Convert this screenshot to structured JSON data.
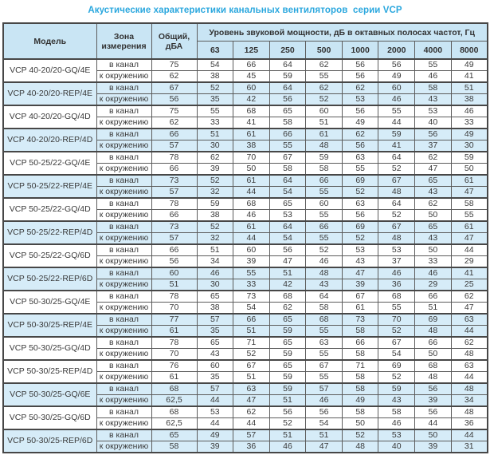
{
  "title": "Акустические характеристики канальных вентиляторов  серии VCP",
  "table": {
    "headers": {
      "model": "Модель",
      "zone": "Зона измерения",
      "total": "Общий, дБА",
      "group": "Уровень звуковой мощности, дБ в октавных полосах частот, Гц",
      "frequencies": [
        "63",
        "125",
        "250",
        "500",
        "1000",
        "2000",
        "4000",
        "8000"
      ]
    },
    "zone_labels": {
      "duct": "в канал",
      "ambient": "к окружению"
    },
    "rows": [
      {
        "model": "VCP 40-20/20-GQ/4E",
        "shaded": false,
        "duct": {
          "total": "75",
          "values": [
            54,
            66,
            64,
            62,
            56,
            56,
            55,
            49
          ]
        },
        "ambient": {
          "total": "62",
          "values": [
            38,
            45,
            59,
            55,
            56,
            49,
            46,
            41
          ]
        }
      },
      {
        "model": "VCP 40-20/20-REP/4E",
        "shaded": true,
        "duct": {
          "total": "67",
          "values": [
            52,
            60,
            64,
            62,
            62,
            60,
            58,
            51
          ]
        },
        "ambient": {
          "total": "56",
          "values": [
            35,
            42,
            56,
            52,
            53,
            46,
            43,
            38
          ]
        }
      },
      {
        "model": "VCP 40-20/20-GQ/4D",
        "shaded": false,
        "duct": {
          "total": "75",
          "values": [
            55,
            68,
            65,
            60,
            56,
            55,
            53,
            46
          ]
        },
        "ambient": {
          "total": "62",
          "values": [
            33,
            41,
            58,
            51,
            49,
            44,
            40,
            33
          ]
        }
      },
      {
        "model": "VCP 40-20/20-REP/4D",
        "shaded": true,
        "duct": {
          "total": "66",
          "values": [
            51,
            61,
            66,
            61,
            62,
            59,
            56,
            49
          ]
        },
        "ambient": {
          "total": "57",
          "values": [
            30,
            38,
            55,
            48,
            56,
            41,
            37,
            30
          ]
        }
      },
      {
        "model": "VCP 50-25/22-GQ/4E",
        "shaded": false,
        "duct": {
          "total": "78",
          "values": [
            62,
            70,
            67,
            59,
            63,
            64,
            62,
            59
          ]
        },
        "ambient": {
          "total": "66",
          "values": [
            39,
            50,
            58,
            58,
            55,
            52,
            47,
            50
          ]
        }
      },
      {
        "model": "VCP 50-25/22-REP/4E",
        "shaded": true,
        "duct": {
          "total": "73",
          "values": [
            52,
            61,
            64,
            66,
            69,
            67,
            65,
            61
          ]
        },
        "ambient": {
          "total": "57",
          "values": [
            32,
            44,
            54,
            55,
            52,
            48,
            43,
            47
          ]
        }
      },
      {
        "model": "VCP 50-25/22-GQ/4D",
        "shaded": false,
        "duct": {
          "total": "78",
          "values": [
            59,
            68,
            65,
            60,
            63,
            64,
            62,
            58
          ]
        },
        "ambient": {
          "total": "66",
          "values": [
            38,
            46,
            53,
            55,
            56,
            52,
            50,
            55
          ]
        }
      },
      {
        "model": "VCP 50-25/22-REP/4D",
        "shaded": true,
        "duct": {
          "total": "73",
          "values": [
            52,
            61,
            64,
            66,
            69,
            67,
            65,
            61
          ]
        },
        "ambient": {
          "total": "57",
          "values": [
            32,
            44,
            54,
            55,
            52,
            48,
            43,
            47
          ]
        }
      },
      {
        "model": "VCP 50-25/22-GQ/6D",
        "shaded": false,
        "duct": {
          "total": "66",
          "values": [
            51,
            60,
            56,
            52,
            53,
            53,
            50,
            44
          ]
        },
        "ambient": {
          "total": "56",
          "values": [
            34,
            39,
            47,
            46,
            43,
            37,
            33,
            29
          ]
        }
      },
      {
        "model": "VCP 50-25/22-REP/6D",
        "shaded": true,
        "duct": {
          "total": "60",
          "values": [
            46,
            55,
            51,
            48,
            47,
            46,
            46,
            41
          ]
        },
        "ambient": {
          "total": "51",
          "values": [
            30,
            33,
            42,
            43,
            39,
            36,
            29,
            25
          ]
        }
      },
      {
        "model": "VCP 50-30/25-GQ/4E",
        "shaded": false,
        "duct": {
          "total": "78",
          "values": [
            65,
            73,
            68,
            64,
            67,
            68,
            66,
            62
          ]
        },
        "ambient": {
          "total": "70",
          "values": [
            38,
            54,
            62,
            58,
            61,
            55,
            51,
            47
          ]
        }
      },
      {
        "model": "VCP 50-30/25-REP/4E",
        "shaded": true,
        "duct": {
          "total": "77",
          "values": [
            57,
            66,
            65,
            68,
            73,
            70,
            69,
            63
          ]
        },
        "ambient": {
          "total": "61",
          "values": [
            35,
            51,
            59,
            55,
            58,
            52,
            48,
            44
          ]
        }
      },
      {
        "model": "VCP 50-30/25-GQ/4D",
        "shaded": false,
        "duct": {
          "total": "78",
          "values": [
            65,
            71,
            65,
            63,
            66,
            67,
            66,
            62
          ]
        },
        "ambient": {
          "total": "70",
          "values": [
            43,
            52,
            59,
            55,
            58,
            54,
            50,
            48
          ]
        }
      },
      {
        "model": "VCP 50-30/25-REP/4D",
        "shaded": false,
        "duct": {
          "total": "76",
          "values": [
            60,
            67,
            65,
            67,
            71,
            69,
            68,
            63
          ]
        },
        "ambient": {
          "total": "61",
          "values": [
            35,
            51,
            59,
            55,
            58,
            52,
            48,
            44
          ]
        }
      },
      {
        "model": "VCP 50-30/25-GQ/6E",
        "shaded": true,
        "duct": {
          "total": "68",
          "values": [
            57,
            63,
            59,
            57,
            58,
            59,
            56,
            48
          ]
        },
        "ambient": {
          "total": "62,5",
          "values": [
            44,
            47,
            51,
            46,
            49,
            43,
            39,
            34
          ]
        }
      },
      {
        "model": "VCP 50-30/25-GQ/6D",
        "shaded": false,
        "duct": {
          "total": "68",
          "values": [
            53,
            62,
            56,
            56,
            58,
            58,
            56,
            48
          ]
        },
        "ambient": {
          "total": "62,5",
          "values": [
            44,
            44,
            52,
            54,
            50,
            46,
            44,
            36
          ]
        }
      },
      {
        "model": "VCP 50-30/25-REP/6D",
        "shaded": true,
        "duct": {
          "total": "65",
          "values": [
            49,
            57,
            51,
            51,
            52,
            53,
            50,
            44
          ]
        },
        "ambient": {
          "total": "58",
          "values": [
            39,
            36,
            46,
            47,
            48,
            40,
            39,
            31
          ]
        }
      }
    ]
  }
}
